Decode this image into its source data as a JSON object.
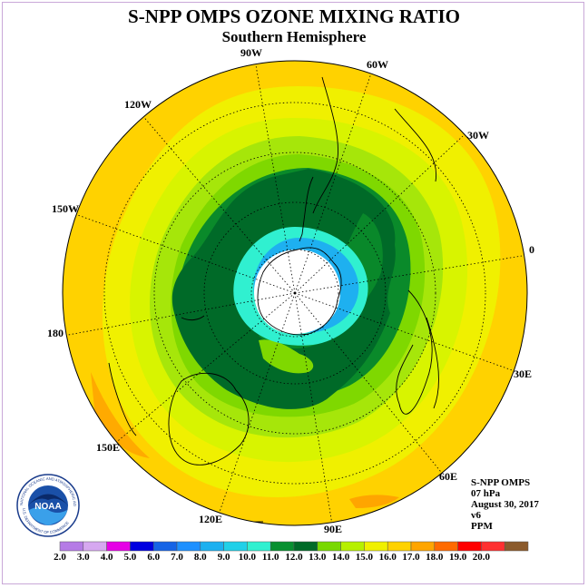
{
  "header": {
    "title": "S-NPP OMPS OZONE MIXING RATIO",
    "subtitle": "Southern Hemisphere"
  },
  "longitude_labels": [
    {
      "text": "90W",
      "name": "lon-label-90w"
    },
    {
      "text": "60W",
      "name": "lon-label-60w"
    },
    {
      "text": "120W",
      "name": "lon-label-120w"
    },
    {
      "text": "30W",
      "name": "lon-label-30w"
    },
    {
      "text": "150W",
      "name": "lon-label-150w"
    },
    {
      "text": "0",
      "name": "lon-label-0"
    },
    {
      "text": "180",
      "name": "lon-label-180"
    },
    {
      "text": "30E",
      "name": "lon-label-30e"
    },
    {
      "text": "150E",
      "name": "lon-label-150e"
    },
    {
      "text": "60E",
      "name": "lon-label-60e"
    },
    {
      "text": "120E",
      "name": "lon-label-120e"
    },
    {
      "text": "90E",
      "name": "lon-label-90e"
    }
  ],
  "info": {
    "instrument": "S-NPP OMPS",
    "level": "07 hPa",
    "date": "August 30, 2017",
    "version": "v6",
    "units": "PPM"
  },
  "logo": {
    "text": "NOAA",
    "ring_text": "NATIONAL OCEANIC AND ATMOSPHERIC ADMINISTRATION",
    "bottom_text": "U.S. DEPARTMENT OF COMMERCE"
  },
  "colorbar": {
    "ticks": [
      "2.0",
      "3.0",
      "4.0",
      "5.0",
      "6.0",
      "7.0",
      "8.0",
      "9.0",
      "10.0",
      "11.0",
      "12.0",
      "13.0",
      "14.0",
      "15.0",
      "16.0",
      "17.0",
      "18.0",
      "19.0",
      "20.0"
    ],
    "colors": [
      "#b57be6",
      "#d6a8f0",
      "#e600e6",
      "#0000e0",
      "#1664e6",
      "#1e90ff",
      "#1cb0f0",
      "#20d0e8",
      "#30f0d0",
      "#089030",
      "#006a28",
      "#78d800",
      "#b6f000",
      "#f0f000",
      "#ffd200",
      "#ffa500",
      "#ff6a00",
      "#ff0000",
      "#ff3030",
      "#8b5a2b"
    ]
  },
  "map_colors": {
    "outer": "#ffd200",
    "band15": "#f0f000",
    "band14": "#d8f400",
    "band13": "#a6e60a",
    "band12": "#7fd800",
    "band11": "#0a8a2a",
    "core": "#006a28",
    "cyan": "#30f0d0",
    "blue": "#1eb0f0",
    "hole": "#ffffff",
    "patch": "#ffa500"
  }
}
